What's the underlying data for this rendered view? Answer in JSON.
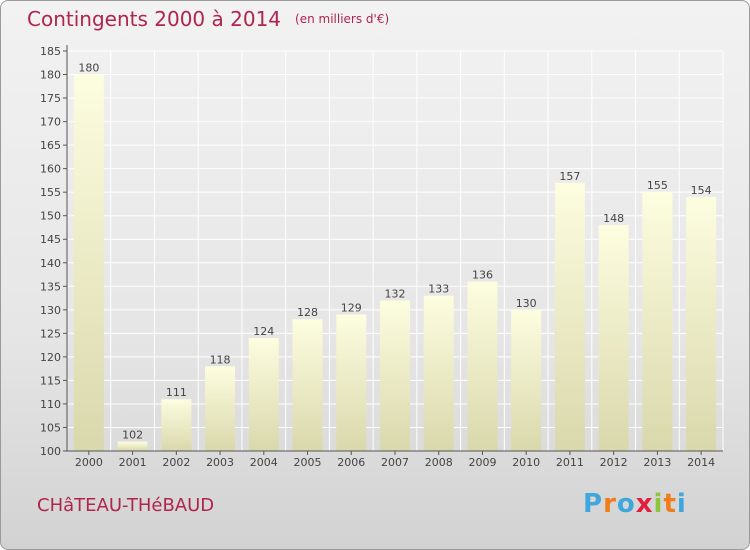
{
  "title": "Contingents 2000 à 2014",
  "unit": "(en milliers d'€)",
  "commune": "CHâTEAU-THéBAUD",
  "logo": {
    "letters": [
      "P",
      "r",
      "o",
      "x",
      "i",
      "t",
      "i"
    ],
    "colors": [
      "#3fa7dd",
      "#f07d1b",
      "#3fa7dd",
      "#e0203e",
      "#8cc63e",
      "#f07d1b",
      "#3fa7dd"
    ]
  },
  "colors": {
    "title": "#b0254e",
    "bar_top": "#fdfde0",
    "bar_bottom": "#d9d8ac"
  },
  "chart_data": {
    "type": "bar",
    "categories": [
      "2000",
      "2001",
      "2002",
      "2003",
      "2004",
      "2005",
      "2006",
      "2007",
      "2008",
      "2009",
      "2010",
      "2011",
      "2012",
      "2013",
      "2014"
    ],
    "values": [
      180,
      102,
      111,
      118,
      124,
      128,
      129,
      132,
      133,
      136,
      130,
      157,
      148,
      155,
      154
    ],
    "ylim": [
      100,
      185
    ],
    "yticks": [
      100,
      105,
      110,
      115,
      120,
      125,
      130,
      135,
      140,
      145,
      150,
      155,
      160,
      165,
      170,
      175,
      180,
      185
    ],
    "grid": true
  }
}
